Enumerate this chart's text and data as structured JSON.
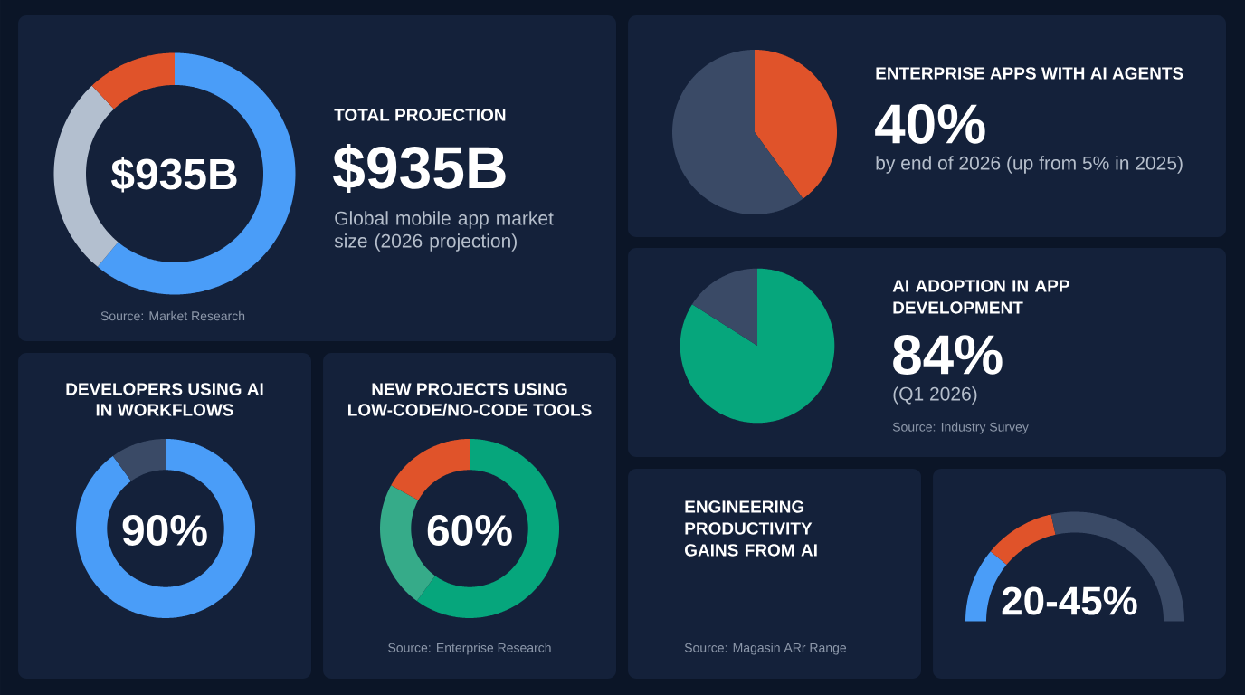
{
  "chart_data": [
    {
      "type": "donut",
      "title": "TOTAL PROJECTION",
      "subtitle": "Global mobile app market size (2026 projection)",
      "categories": [
        null,
        null,
        null
      ],
      "values": [
        61,
        27,
        12
      ],
      "colors": [
        "#4a9df8",
        "#b3bfcf",
        "#e0532a"
      ],
      "annotations": [
        "$935B",
        "$935B",
        "Source: Market Research"
      ]
    },
    {
      "type": "pie",
      "title": "ENTERPRISE APPS WITH AI AGENTS",
      "subtitle": "by end of 2026 (up from 5% in 2025)",
      "categories": [
        null,
        null
      ],
      "values": [
        40,
        60
      ],
      "colors": [
        "#e0532a",
        "#3a4a66"
      ],
      "annotations": [
        "40%"
      ]
    },
    {
      "type": "pie",
      "title": "AI ADOPTION IN APP DEVELOPMENT",
      "subtitle": "(Q1 2026)",
      "categories": [
        null,
        null
      ],
      "values": [
        84,
        16
      ],
      "colors": [
        "#06a67c",
        "#3a4a66"
      ],
      "annotations": [
        "84%",
        "Source: Industry Survey"
      ]
    },
    {
      "type": "donut",
      "title": "DEVELOPERS USING AI IN WORKFLOWS",
      "categories": [
        null,
        null
      ],
      "values": [
        90,
        10
      ],
      "colors": [
        "#4a9df8",
        "#3a4a66"
      ],
      "annotations": [
        "90%"
      ]
    },
    {
      "type": "donut",
      "title": "NEW PROJECTS USING LOW-CODE/NO-CODE TOOLS",
      "categories": [
        null,
        null,
        null
      ],
      "values": [
        60,
        23,
        17
      ],
      "colors": [
        "#06a67c",
        "#36ab89",
        "#e0532a"
      ],
      "annotations": [
        "60%",
        "Source: Enterprise Research"
      ]
    },
    {
      "type": "other",
      "title": "ENGINEERING PRODUCTIVITY GAINS FROM AI",
      "annotations": [
        "Source: Magasin ARr Range"
      ]
    },
    {
      "type": "donut",
      "categories": [
        null,
        null,
        null
      ],
      "values": [
        22,
        21,
        57
      ],
      "colors": [
        "#4a9df8",
        "#e0532a",
        "#3a4a66"
      ],
      "annotations": [
        "20-45%"
      ]
    }
  ]
}
